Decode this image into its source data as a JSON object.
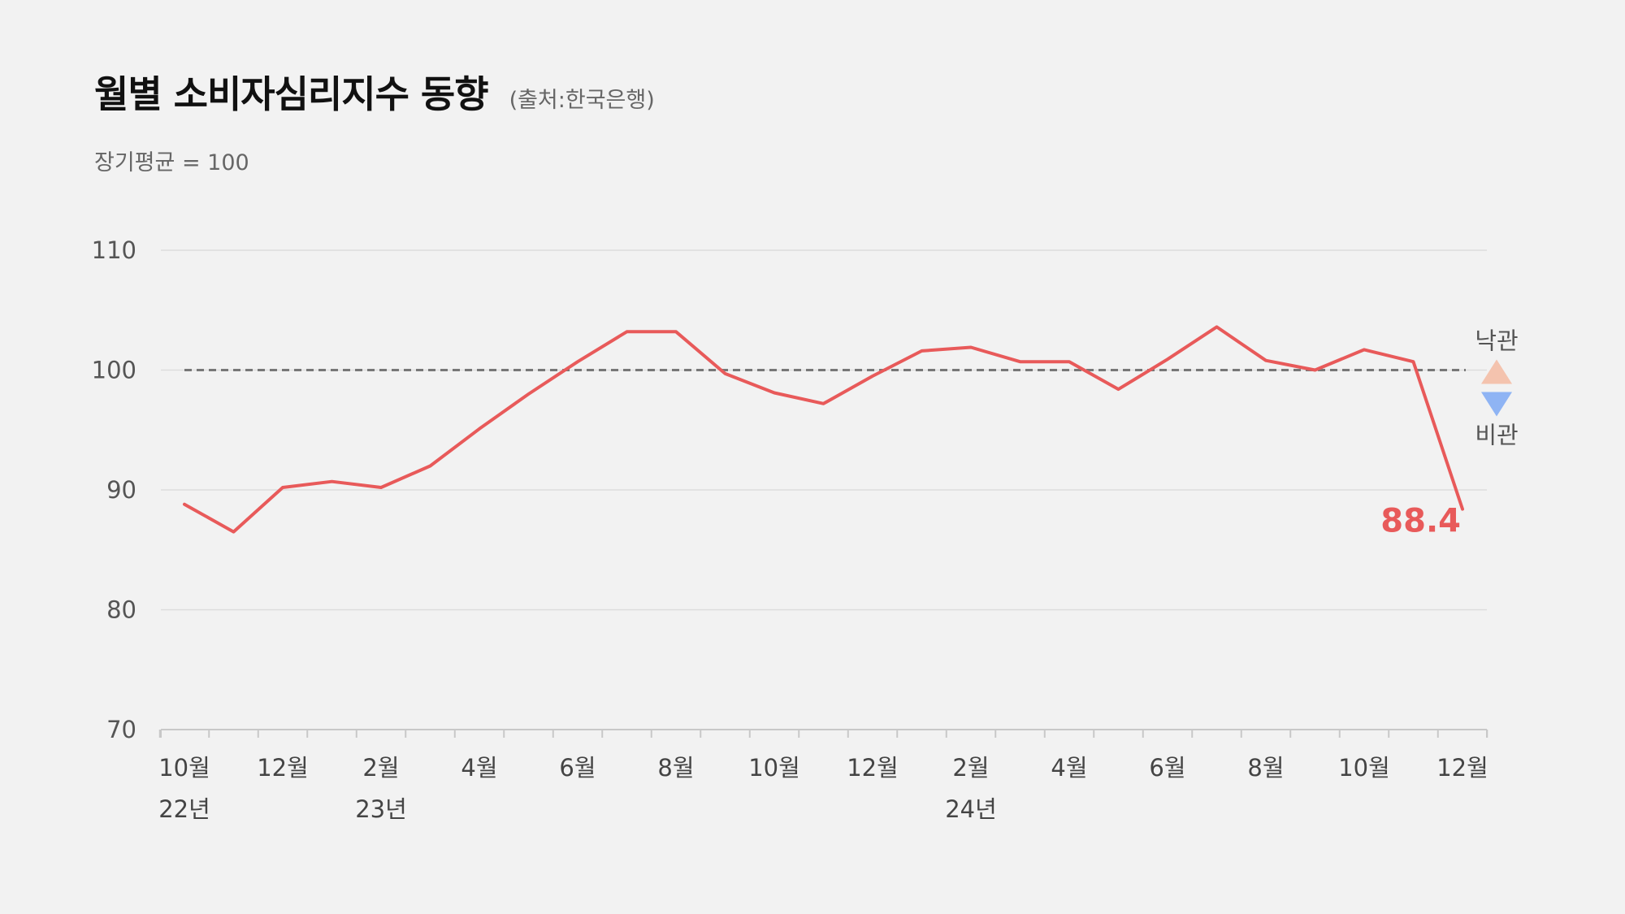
{
  "title": "월별 소비자심리지수 동향",
  "source": "(출처:한국은행)",
  "subtitle": "장기평균 = 100",
  "legend": {
    "up_label": "낙관",
    "down_label": "비관",
    "up_color": "#f4c3ae",
    "down_color": "#8fb4f4"
  },
  "colors": {
    "line": "#e85a5a",
    "baseline": "#777777",
    "grid": "#dddddd"
  },
  "chart_data": {
    "type": "line",
    "ylim": [
      70,
      110
    ],
    "yticks": [
      70,
      80,
      90,
      100,
      110
    ],
    "reference_line": 100,
    "x": [
      "2022-10",
      "2022-11",
      "2022-12",
      "2023-01",
      "2023-02",
      "2023-03",
      "2023-04",
      "2023-05",
      "2023-06",
      "2023-07",
      "2023-08",
      "2023-09",
      "2023-10",
      "2023-11",
      "2023-12",
      "2024-01",
      "2024-02",
      "2024-03",
      "2024-04",
      "2024-05",
      "2024-06",
      "2024-07",
      "2024-08",
      "2024-09",
      "2024-10",
      "2024-11",
      "2024-12"
    ],
    "xtick_labels": [
      "10월",
      "",
      "12월",
      "",
      "2월",
      "",
      "4월",
      "",
      "6월",
      "",
      "8월",
      "",
      "10월",
      "",
      "12월",
      "",
      "2월",
      "",
      "4월",
      "",
      "6월",
      "",
      "8월",
      "",
      "10월",
      "",
      "12월"
    ],
    "year_labels": [
      {
        "index": 0,
        "label": "22년"
      },
      {
        "index": 4,
        "label": "23년"
      },
      {
        "index": 16,
        "label": "24년"
      }
    ],
    "series": [
      {
        "values": [
          88.8,
          86.5,
          90.2,
          90.7,
          90.2,
          92.0,
          95.1,
          98.0,
          100.7,
          103.2,
          103.2,
          99.7,
          98.1,
          97.2,
          99.5,
          101.6,
          101.9,
          100.7,
          100.7,
          98.4,
          100.9,
          103.6,
          100.8,
          100.0,
          101.7,
          100.7,
          88.4
        ]
      }
    ],
    "last_value_label": "88.4"
  }
}
